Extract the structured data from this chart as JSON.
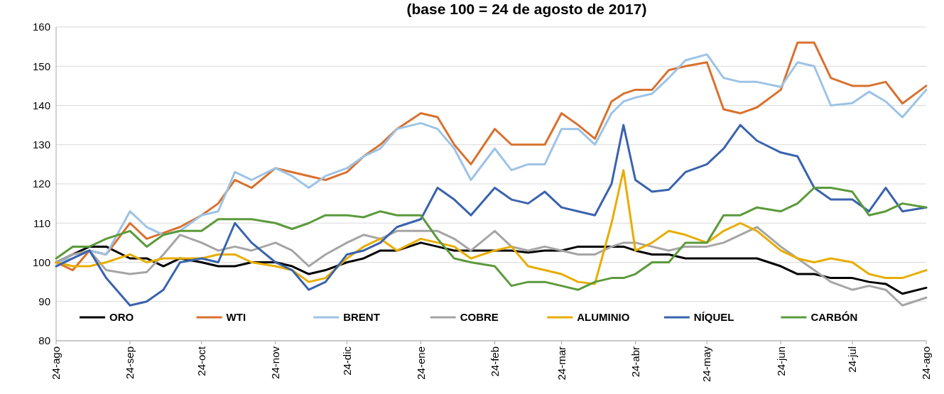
{
  "chart_data": {
    "type": "line",
    "title": "(base 100 = 24 de agosto de 2017)",
    "x": [
      "2017-08-24",
      "2017-08-31",
      "2017-09-07",
      "2017-09-14",
      "2017-09-24",
      "2017-10-01",
      "2017-10-08",
      "2017-10-15",
      "2017-10-24",
      "2017-10-31",
      "2017-11-07",
      "2017-11-14",
      "2017-11-24",
      "2017-12-01",
      "2017-12-08",
      "2017-12-15",
      "2017-12-24",
      "2017-12-31",
      "2018-01-07",
      "2018-01-14",
      "2018-01-24",
      "2018-01-31",
      "2018-02-07",
      "2018-02-14",
      "2018-02-24",
      "2018-03-03",
      "2018-03-10",
      "2018-03-17",
      "2018-03-24",
      "2018-03-31",
      "2018-04-07",
      "2018-04-14",
      "2018-04-19",
      "2018-04-24",
      "2018-05-01",
      "2018-05-08",
      "2018-05-15",
      "2018-05-24",
      "2018-05-31",
      "2018-06-07",
      "2018-06-14",
      "2018-06-24",
      "2018-07-01",
      "2018-07-08",
      "2018-07-15",
      "2018-07-24",
      "2018-07-31",
      "2018-08-07",
      "2018-08-14",
      "2018-08-24"
    ],
    "series": [
      {
        "name": "ORO",
        "color": "#000000",
        "values": [
          100,
          102,
          104,
          104,
          101,
          101,
          99,
          101,
          100,
          99,
          99,
          100,
          100,
          99,
          97,
          98,
          100,
          101,
          103,
          103,
          105,
          104,
          103,
          103,
          103,
          103,
          102.5,
          103,
          103,
          104,
          104,
          104,
          104,
          103,
          102,
          102,
          101,
          101,
          101,
          101,
          101,
          99,
          97,
          97,
          96,
          96,
          95,
          94.5,
          92,
          93.5
        ]
      },
      {
        "name": "WTI",
        "color": "#d9712e",
        "values": [
          100,
          98,
          103,
          102,
          110,
          106,
          107.5,
          109,
          112,
          115,
          121,
          119,
          124,
          123,
          122,
          121,
          123,
          127,
          130,
          134,
          138,
          137,
          130,
          125,
          134,
          130,
          130,
          130,
          138,
          135,
          131.5,
          141,
          143,
          144,
          144,
          149,
          150,
          151,
          139,
          138,
          139.5,
          144,
          156,
          156,
          147,
          145,
          145,
          146,
          140.5,
          145
        ]
      },
      {
        "name": "BRENT",
        "color": "#9dc3e6",
        "values": [
          100,
          101,
          103,
          102,
          113,
          109,
          107,
          108,
          112,
          113,
          123,
          121,
          124,
          122,
          119,
          122,
          124,
          127,
          129,
          134,
          135.5,
          134,
          129,
          121,
          129,
          123.5,
          125,
          125,
          134,
          134,
          130,
          138,
          141,
          142,
          143,
          147,
          151.5,
          153,
          147,
          146,
          146,
          144.7,
          151,
          150,
          140,
          140.6,
          143.5,
          141,
          137,
          144
        ]
      },
      {
        "name": "COBRE",
        "color": "#a5a5a5",
        "values": [
          100,
          102,
          103,
          98,
          97,
          97.5,
          102,
          107,
          105,
          103,
          104,
          103,
          105,
          103,
          99,
          102,
          105,
          107,
          106,
          108,
          108,
          108,
          106,
          103,
          108,
          104,
          103,
          104,
          103,
          102,
          102,
          104,
          105,
          105,
          104,
          103,
          104,
          104,
          105,
          107,
          109,
          104,
          101,
          98,
          95,
          93,
          94,
          93,
          89,
          91
        ]
      },
      {
        "name": "ALUMINIO",
        "color": "#e8ad00",
        "values": [
          100,
          99,
          99,
          100,
          102,
          100,
          101,
          101,
          101,
          102,
          102,
          100,
          99,
          98,
          95,
          96,
          101,
          104,
          106,
          103,
          106,
          105,
          104,
          101,
          103,
          104,
          99,
          98,
          97,
          95,
          94.5,
          110,
          123.5,
          103,
          105,
          108,
          107,
          105,
          108,
          110,
          108,
          103,
          101,
          100,
          101,
          100,
          97,
          96,
          96,
          98
        ]
      },
      {
        "name": "NÍQUEL",
        "color": "#3a63ad",
        "values": [
          99,
          101,
          103,
          96,
          89,
          90,
          93,
          100,
          101,
          100,
          110,
          105,
          100,
          98,
          93,
          95,
          102,
          103,
          105,
          109,
          111,
          119,
          116,
          112,
          119,
          116,
          115,
          118,
          114,
          113,
          112,
          120,
          135,
          121,
          118,
          118.5,
          123,
          125,
          129,
          135,
          131,
          128,
          127,
          119,
          116,
          116,
          113,
          119,
          113,
          114
        ]
      },
      {
        "name": "CARBÓN",
        "color": "#5b9a3b",
        "values": [
          101,
          104,
          104,
          106,
          108,
          104,
          107,
          108,
          108,
          111,
          111,
          111,
          110,
          108.5,
          110,
          112,
          112,
          111.5,
          113,
          112,
          112,
          106,
          101,
          100,
          99,
          94,
          95,
          95,
          94,
          93,
          95,
          96,
          96,
          97,
          100,
          100,
          105,
          105,
          112,
          112,
          114,
          113,
          115,
          119,
          119,
          118,
          112,
          113,
          115,
          114
        ]
      }
    ],
    "xlim": [
      "2017-08-24",
      "2018-08-24"
    ],
    "xticks": [
      {
        "value": "2017-08-24",
        "label": "24-ago"
      },
      {
        "value": "2017-09-24",
        "label": "24-sep"
      },
      {
        "value": "2017-10-24",
        "label": "24-oct"
      },
      {
        "value": "2017-11-24",
        "label": "24-nov"
      },
      {
        "value": "2017-12-24",
        "label": "24-dic"
      },
      {
        "value": "2018-01-24",
        "label": "24-ene"
      },
      {
        "value": "2018-02-24",
        "label": "24-feb"
      },
      {
        "value": "2018-03-24",
        "label": "24-mar"
      },
      {
        "value": "2018-04-24",
        "label": "24-abr"
      },
      {
        "value": "2018-05-24",
        "label": "24-may"
      },
      {
        "value": "2018-06-24",
        "label": "24-jun"
      },
      {
        "value": "2018-07-24",
        "label": "24-jul"
      },
      {
        "value": "2018-08-24",
        "label": "24-ago"
      }
    ],
    "ylim": [
      80,
      160
    ],
    "yticks": [
      80,
      90,
      100,
      110,
      120,
      130,
      140,
      150,
      160
    ],
    "grid": "y",
    "legend": "bottom",
    "marker": "none",
    "line_style": "solid"
  }
}
